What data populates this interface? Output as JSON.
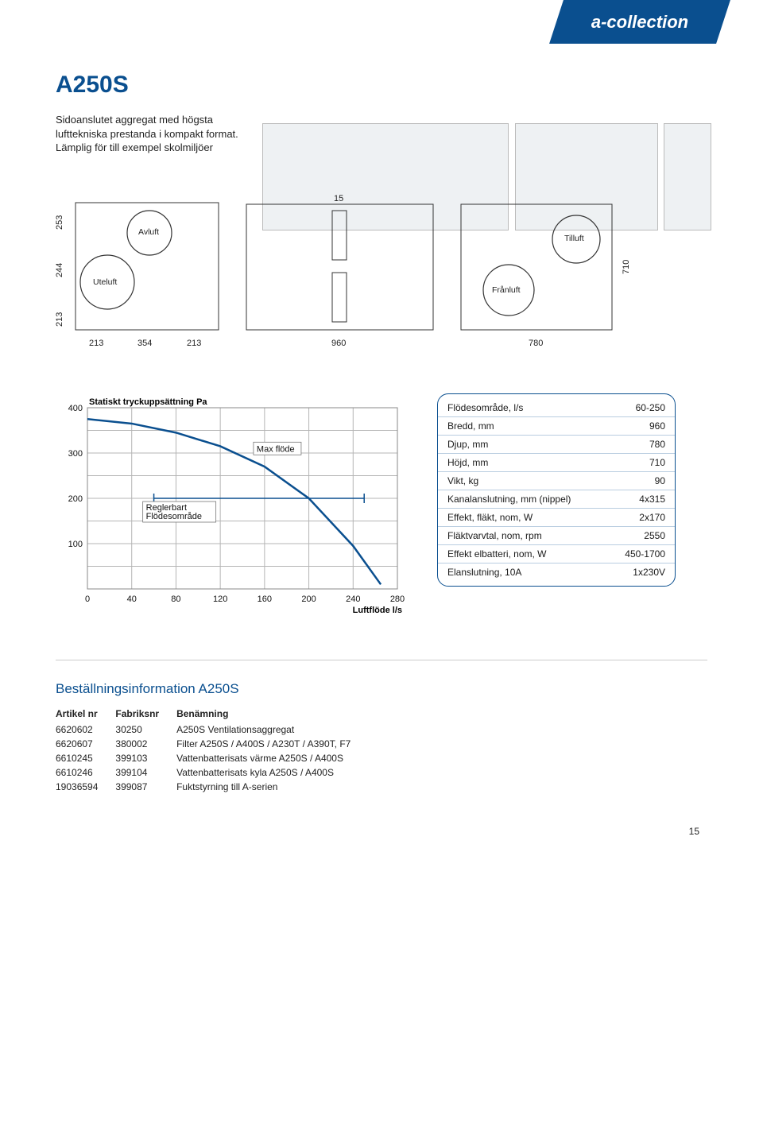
{
  "brand": "a-collection",
  "title": "A250S",
  "intro": "Sidoanslutet aggregat med högsta lufttekniska prestanda i kompakt format. Lämplig för till exempel skolmiljöer",
  "page_number": "15",
  "schematic_left": {
    "port_labels": {
      "uteluft": "Uteluft",
      "avluft": "Avluft"
    },
    "y_dims": [
      "253",
      "244",
      "213"
    ],
    "x_dims": [
      "213",
      "354",
      "213"
    ]
  },
  "schematic_mid": {
    "top_dim": "15",
    "bottom_dim": "960"
  },
  "schematic_right": {
    "port_labels": {
      "franluft": "Frånluft",
      "tilluft": "Tilluft"
    },
    "bottom_dim": "780",
    "right_dim": "710"
  },
  "chart": {
    "y_title": "Statiskt tryckuppsättning Pa",
    "x_title": "Luftflöde l/s",
    "y_ticks": [
      "400",
      "300",
      "200",
      "100"
    ],
    "x_ticks": [
      "0",
      "40",
      "80",
      "120",
      "160",
      "200",
      "240",
      "280"
    ],
    "annot_reglerbart": "Reglerbart\nFlödesområde",
    "annot_max": "Max flöde",
    "curve_points": [
      [
        0,
        375
      ],
      [
        40,
        365
      ],
      [
        80,
        345
      ],
      [
        120,
        315
      ],
      [
        160,
        270
      ],
      [
        200,
        200
      ],
      [
        240,
        95
      ],
      [
        265,
        10
      ]
    ],
    "range_start_x": 60,
    "range_end_x": 250,
    "range_y": 200,
    "colors": {
      "line": "#0a4f8f",
      "grid": "#b5b5b5"
    }
  },
  "spec": {
    "rows": [
      {
        "k": "Flödesområde, l/s",
        "v": "60-250"
      },
      {
        "k": "Bredd, mm",
        "v": "960"
      },
      {
        "k": "Djup, mm",
        "v": "780"
      },
      {
        "k": "Höjd, mm",
        "v": "710"
      },
      {
        "k": "Vikt, kg",
        "v": "90"
      },
      {
        "k": "Kanalanslutning, mm (nippel)",
        "v": "4x315"
      },
      {
        "k": "Effekt, fläkt, nom, W",
        "v": "2x170"
      },
      {
        "k": "Fläktvarvtal, nom, rpm",
        "v": "2550"
      },
      {
        "k": "Effekt elbatteri, nom, W",
        "v": "450-1700"
      },
      {
        "k": "Elanslutning, 10A",
        "v": "1x230V"
      }
    ]
  },
  "order": {
    "heading": "Beställningsinformation A250S",
    "columns": [
      "Artikel nr",
      "Fabriksnr",
      "Benämning"
    ],
    "rows": [
      [
        "6620602",
        "30250",
        "A250S Ventilationsaggregat"
      ],
      [
        "6620607",
        "380002",
        "Filter A250S / A400S / A230T / A390T, F7"
      ],
      [
        "6610245",
        "399103",
        "Vattenbatterisats värme A250S / A400S"
      ],
      [
        "6610246",
        "399104",
        "Vattenbatterisats kyla A250S / A400S"
      ],
      [
        "19036594",
        "399087",
        "Fuktstyrning till A-serien"
      ]
    ]
  }
}
